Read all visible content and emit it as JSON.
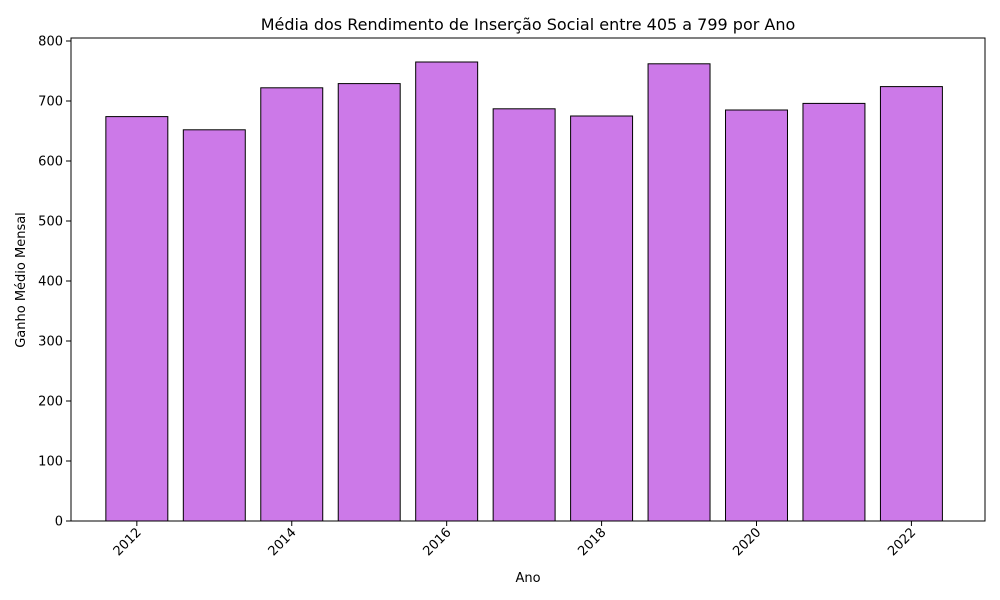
{
  "chart_data": {
    "type": "bar",
    "title": "Média dos Rendimento de Inserção Social entre 405 a 799 por Ano",
    "xlabel": "Ano",
    "ylabel": "Ganho Médio Mensal",
    "x": [
      2012,
      2013,
      2014,
      2015,
      2016,
      2017,
      2018,
      2019,
      2020,
      2021,
      2022
    ],
    "values": [
      674,
      652,
      722,
      729,
      765,
      687,
      675,
      762,
      685,
      696,
      724
    ],
    "xlim": [
      2011.15,
      2022.95
    ],
    "ylim": [
      0,
      805
    ],
    "x_ticks": [
      2012,
      2014,
      2016,
      2018,
      2020,
      2022
    ],
    "y_ticks": [
      0,
      100,
      200,
      300,
      400,
      500,
      600,
      700,
      800
    ],
    "x_tick_rotation": 45,
    "bar_color": "#cc79e8",
    "edge_color": "#000000",
    "grid": false,
    "legend": "none"
  }
}
